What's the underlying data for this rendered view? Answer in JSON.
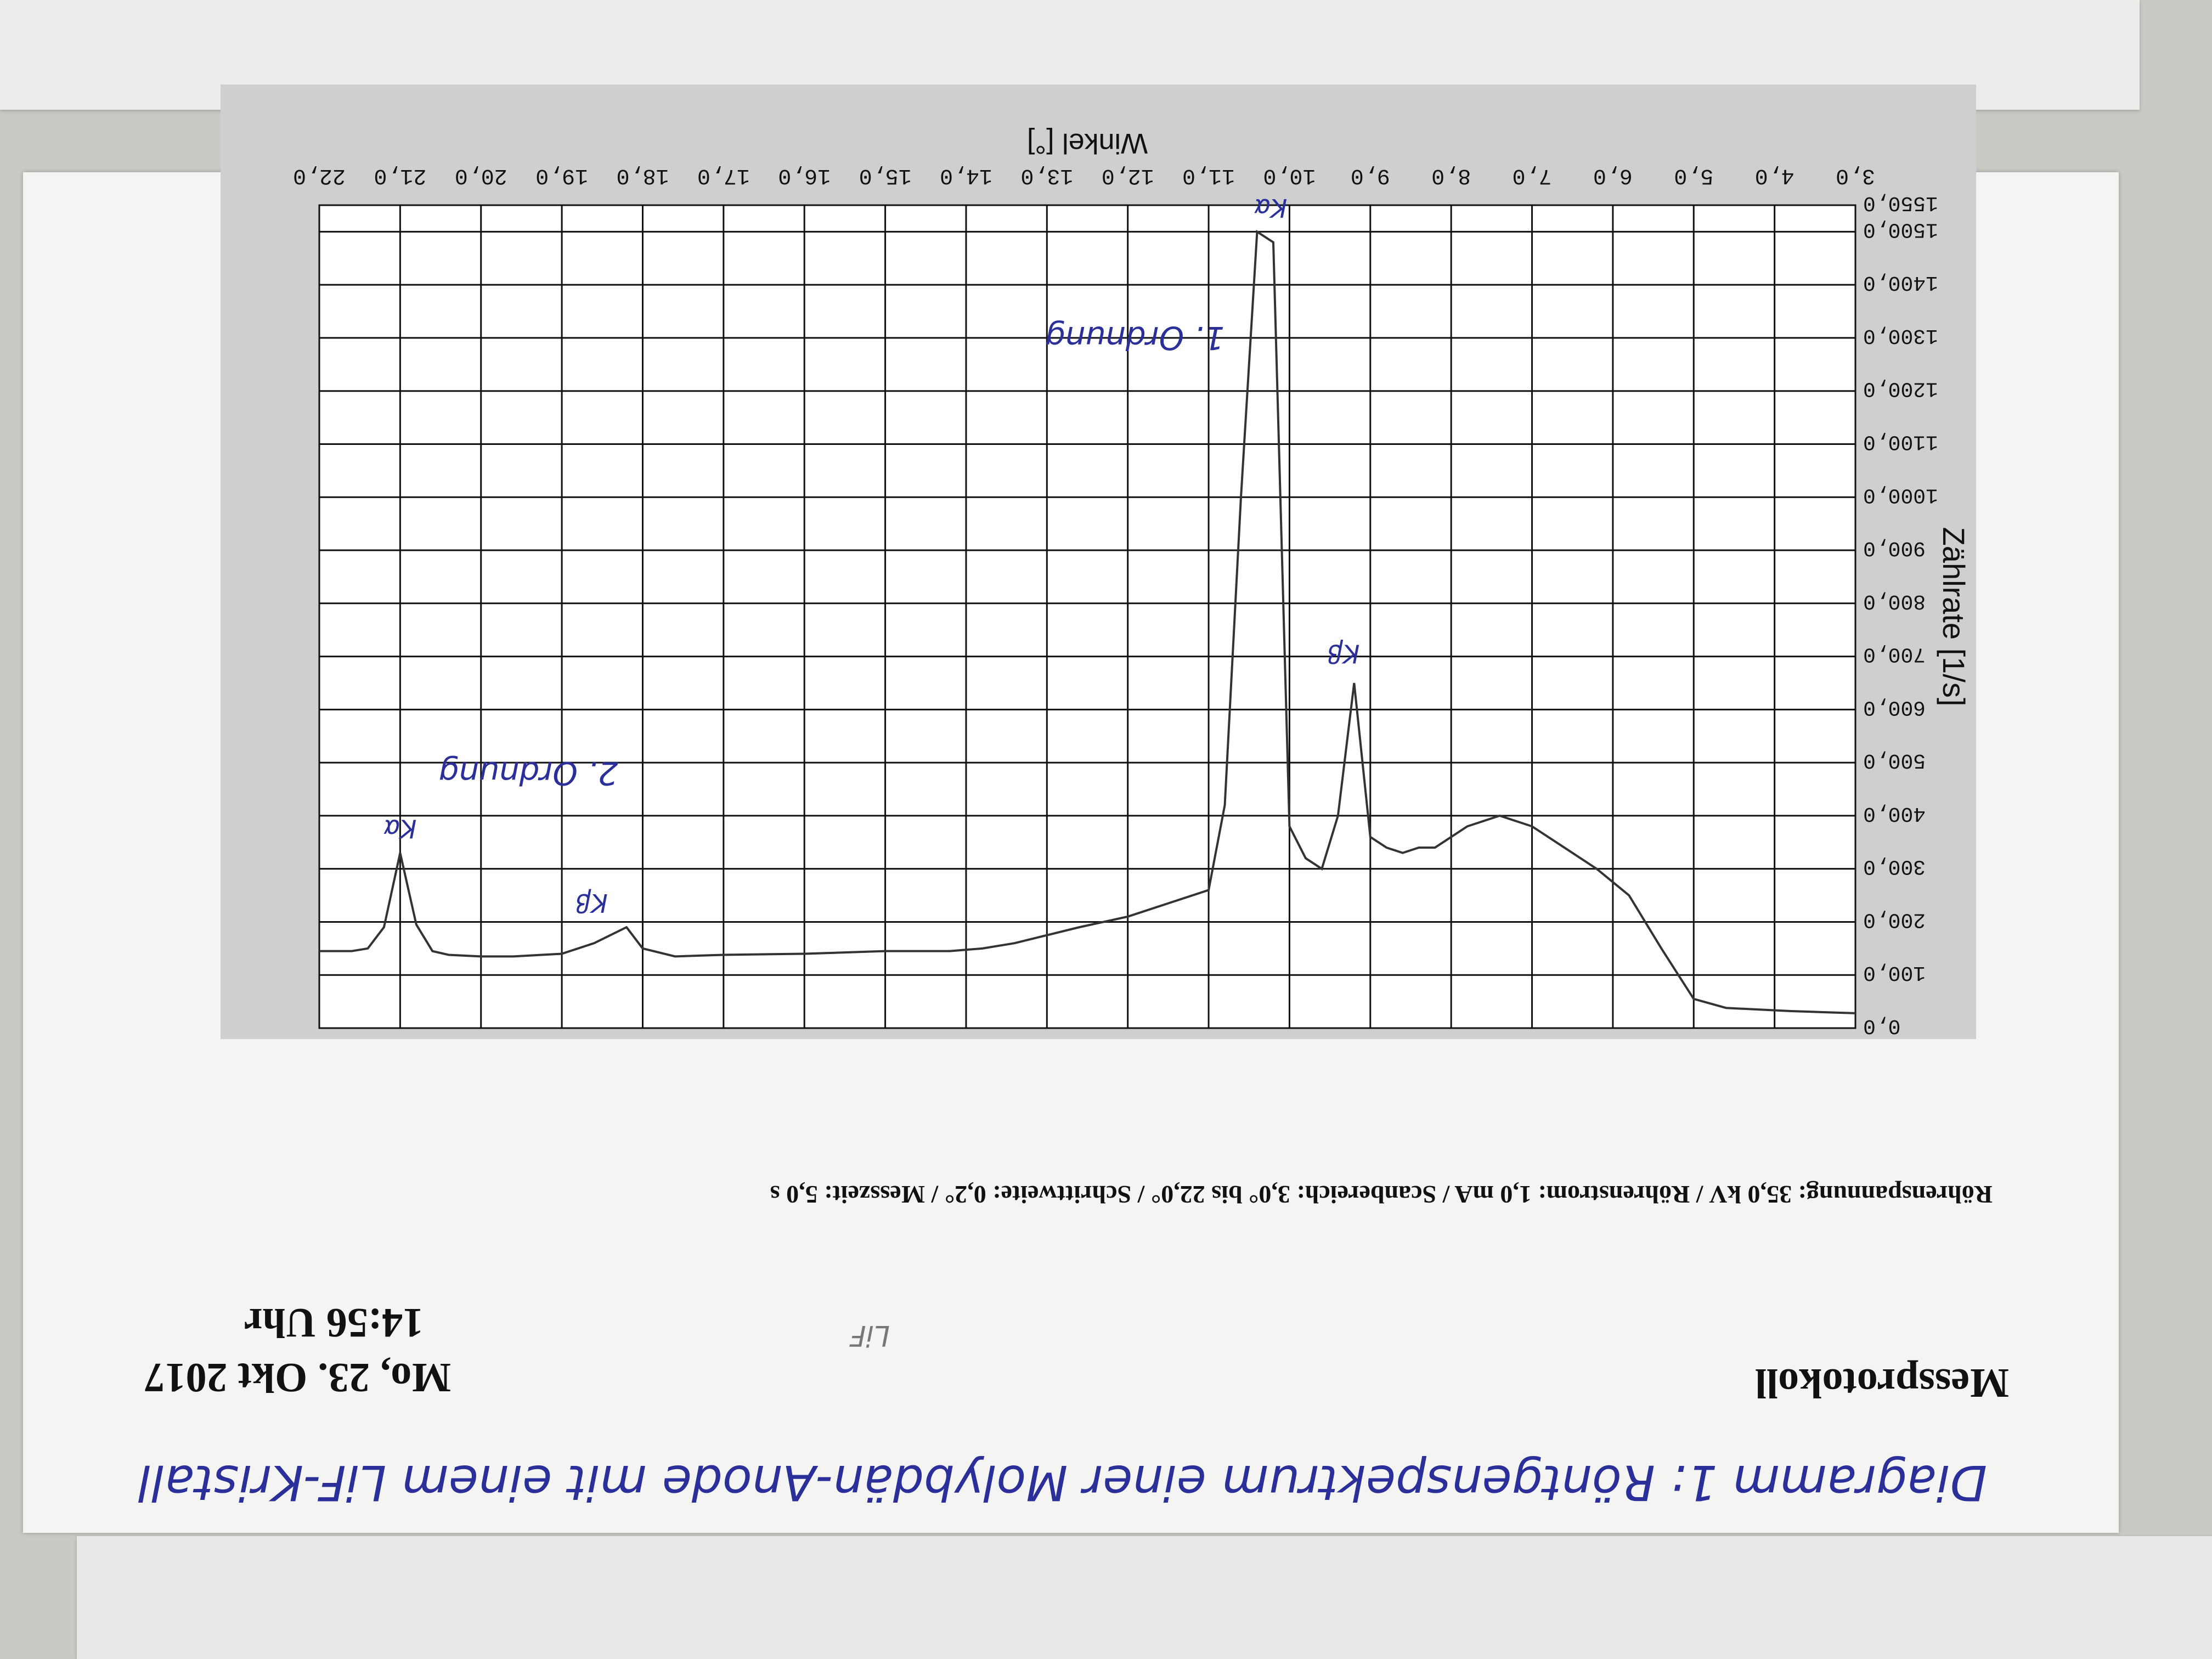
{
  "header": {
    "title": "Messprotokoll",
    "date": "Mo, 23. Okt 2017",
    "time": "14:56 Uhr",
    "crystal_note": "LiF"
  },
  "handwriting": {
    "caption": "Diagramm 1: Röntgenspektrum einer Molybdän-Anode mit einem LiF-Kristall",
    "order1": "1. Ordnung",
    "order2": "2. Ordnung",
    "kalpha_1": "Kα",
    "kbeta_1": "Kβ",
    "kalpha_2": "Kα",
    "kbeta_2": "Kβ"
  },
  "chart_data": {
    "type": "line",
    "title": "Röhrenspannung: 35,0 kV / Röhrenstrom: 1,0 mA / Scanbereich: 3,0° bis 22,0° / Schrittweite: 0,2° / Messzeit: 5,0 s",
    "xlabel": "Winkel [°]",
    "ylabel": "Zählrate [1/s]",
    "xlim": [
      3,
      22
    ],
    "ylim": [
      0,
      1550
    ],
    "xticks": [
      "3,0",
      "4,0",
      "5,0",
      "6,0",
      "7,0",
      "8,0",
      "9,0",
      "10,0",
      "11,0",
      "12,0",
      "13,0",
      "14,0",
      "15,0",
      "16,0",
      "17,0",
      "18,0",
      "19,0",
      "20,0",
      "21,0",
      "22,0"
    ],
    "yticks": [
      "0,0",
      "100,0",
      "200,0",
      "300,0",
      "400,0",
      "500,0",
      "600,0",
      "700,0",
      "800,0",
      "900,0",
      "1000,0",
      "1100,0",
      "1200,0",
      "1300,0",
      "1400,0",
      "1500,0",
      "1550,0"
    ],
    "grid": true,
    "series": [
      {
        "x": [
          3.0,
          3.4,
          3.8,
          4.2,
          4.6,
          5.0,
          5.4,
          5.8,
          6.2,
          6.6,
          7.0,
          7.4,
          7.8,
          8.2,
          8.4,
          8.6,
          8.8,
          9.0,
          9.2,
          9.4,
          9.6,
          9.8,
          10.0,
          10.2,
          10.4,
          10.6,
          10.8,
          11.0,
          11.4,
          12.0,
          12.6,
          13.0,
          13.4,
          13.8,
          14.2,
          15.0,
          16.0,
          17.0,
          17.6,
          18.0,
          18.2,
          18.6,
          19.0,
          19.6,
          20.0,
          20.4,
          20.6,
          20.8,
          21.0,
          21.2,
          21.4,
          21.6,
          22.0
        ],
        "y": [
          28,
          30,
          32,
          35,
          38,
          55,
          150,
          250,
          300,
          340,
          380,
          400,
          380,
          340,
          340,
          330,
          340,
          360,
          650,
          400,
          300,
          320,
          380,
          1480,
          1500,
          1000,
          420,
          260,
          240,
          210,
          190,
          175,
          160,
          150,
          145,
          145,
          140,
          138,
          135,
          150,
          190,
          160,
          140,
          135,
          135,
          138,
          145,
          195,
          330,
          190,
          150,
          145,
          145
        ]
      }
    ]
  }
}
